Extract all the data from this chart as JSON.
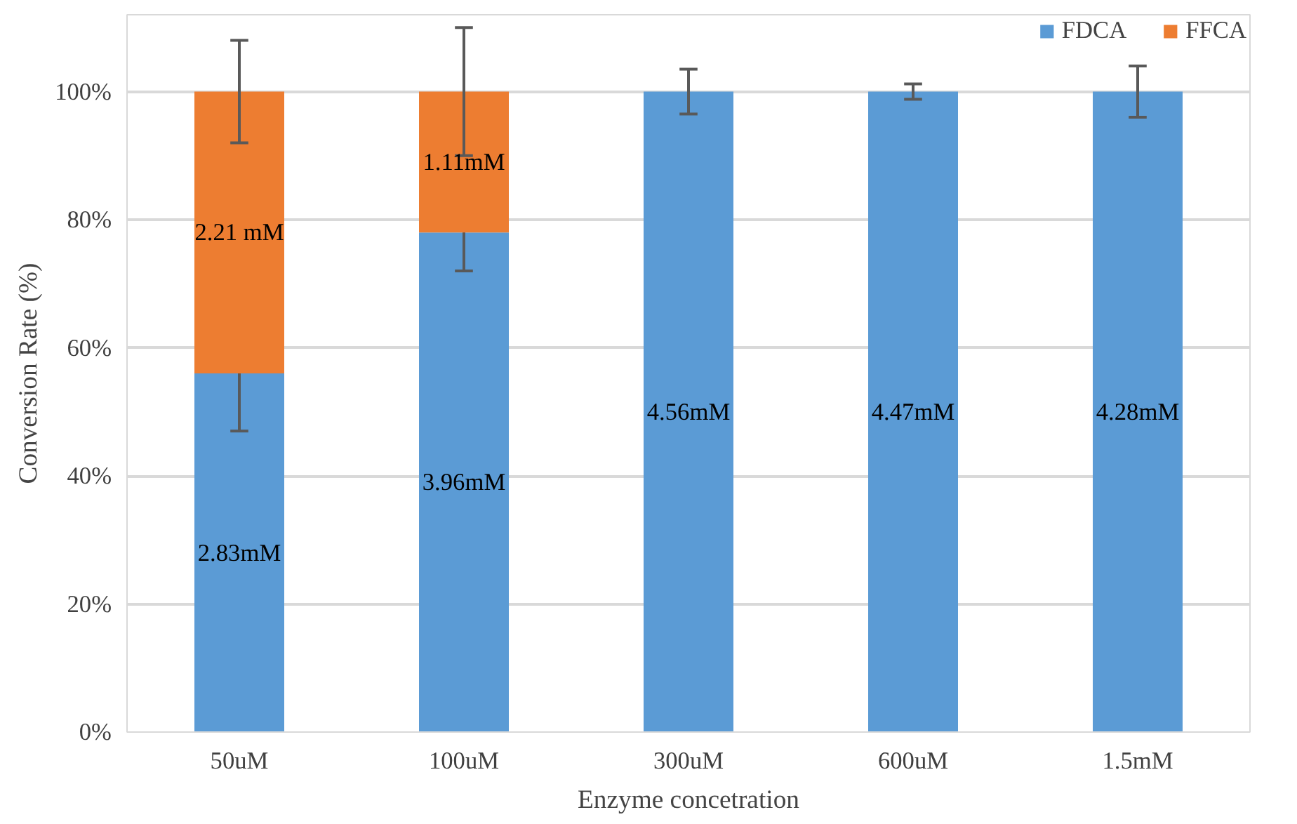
{
  "chart_data": {
    "type": "bar",
    "stacked": true,
    "xlabel": "Enzyme concetration",
    "ylabel": "Conversion Rate (%)",
    "categories": [
      "50uM",
      "100uM",
      "300uM",
      "600uM",
      "1.5mM"
    ],
    "series": [
      {
        "name": "FDCA",
        "color": "#5b9bd5",
        "values": [
          56,
          78,
          100,
          100,
          100
        ],
        "errors": [
          9,
          6,
          3.5,
          1.2,
          4
        ]
      },
      {
        "name": "FFCA",
        "color": "#ed7d31",
        "values": [
          44,
          22,
          0,
          0,
          0
        ],
        "errors": [
          8,
          10,
          null,
          null,
          null
        ]
      }
    ],
    "annotations": [
      "2.83mM",
      "3.96mM",
      "4.56mM",
      "4.47mM",
      "4.28mM",
      "2.21 mM",
      "1.11mM"
    ],
    "ylim": [
      0,
      112
    ],
    "yticks": [
      {
        "value": 0,
        "label": "0%"
      },
      {
        "value": 20,
        "label": "20%"
      },
      {
        "value": 40,
        "label": "40%"
      },
      {
        "value": 60,
        "label": "60%"
      },
      {
        "value": 80,
        "label": "80%"
      },
      {
        "value": 100,
        "label": "100%"
      }
    ],
    "grid": "y",
    "legend": "top right"
  }
}
